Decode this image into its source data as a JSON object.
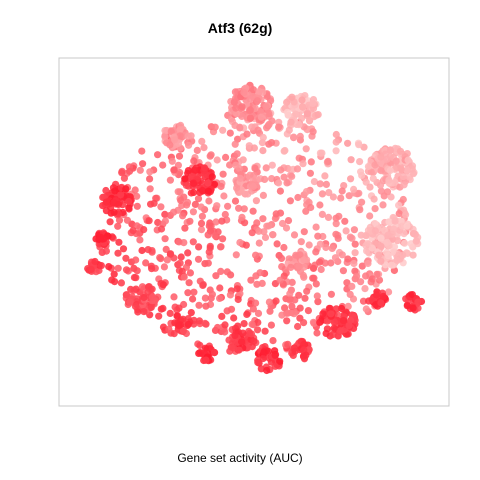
{
  "chart_data": {
    "type": "scatter",
    "title": "Atf3 (62g)",
    "xlabel": "Gene set activity (AUC)",
    "ylabel": "",
    "grid": false,
    "legend": "none",
    "color_scale": {
      "low": "#ffcccc",
      "high": "#ff1a2e"
    },
    "clusters": [
      {
        "cx": 0.49,
        "cy": 0.9,
        "r": 0.06,
        "n": 90,
        "level": 0.38
      },
      {
        "cx": 0.63,
        "cy": 0.88,
        "r": 0.05,
        "n": 70,
        "level": 0.12
      },
      {
        "cx": 0.29,
        "cy": 0.8,
        "r": 0.04,
        "n": 40,
        "level": 0.32
      },
      {
        "cx": 0.88,
        "cy": 0.7,
        "r": 0.065,
        "n": 110,
        "level": 0.18
      },
      {
        "cx": 0.88,
        "cy": 0.47,
        "r": 0.075,
        "n": 130,
        "level": 0.08
      },
      {
        "cx": 0.35,
        "cy": 0.66,
        "r": 0.045,
        "n": 60,
        "level": 0.88
      },
      {
        "cx": 0.12,
        "cy": 0.6,
        "r": 0.045,
        "n": 60,
        "level": 0.9
      },
      {
        "cx": 0.48,
        "cy": 0.65,
        "r": 0.035,
        "n": 40,
        "level": 0.3
      },
      {
        "cx": 0.19,
        "cy": 0.29,
        "r": 0.045,
        "n": 55,
        "level": 0.72
      },
      {
        "cx": 0.73,
        "cy": 0.22,
        "r": 0.05,
        "n": 70,
        "level": 0.85
      },
      {
        "cx": 0.47,
        "cy": 0.16,
        "r": 0.035,
        "n": 40,
        "level": 0.86
      },
      {
        "cx": 0.54,
        "cy": 0.1,
        "r": 0.035,
        "n": 40,
        "level": 0.88
      },
      {
        "cx": 0.63,
        "cy": 0.13,
        "r": 0.03,
        "n": 30,
        "level": 0.82
      },
      {
        "cx": 0.84,
        "cy": 0.29,
        "r": 0.025,
        "n": 25,
        "level": 0.88
      },
      {
        "cx": 0.94,
        "cy": 0.28,
        "r": 0.025,
        "n": 25,
        "level": 0.85
      },
      {
        "cx": 0.08,
        "cy": 0.48,
        "r": 0.02,
        "n": 20,
        "level": 0.92
      },
      {
        "cx": 0.06,
        "cy": 0.39,
        "r": 0.02,
        "n": 20,
        "level": 0.8
      },
      {
        "cx": 0.62,
        "cy": 0.41,
        "r": 0.03,
        "n": 30,
        "level": 0.3
      },
      {
        "cx": 0.37,
        "cy": 0.12,
        "r": 0.025,
        "n": 25,
        "level": 0.92
      },
      {
        "cx": 0.3,
        "cy": 0.21,
        "r": 0.02,
        "n": 20,
        "level": 0.8
      }
    ],
    "background": {
      "n": 750,
      "cx": 0.5,
      "cy": 0.5,
      "rx": 0.43,
      "ry": 0.38,
      "gradient_low_level_at": "top-right",
      "gradient_high_level_at": "bottom-left"
    }
  }
}
